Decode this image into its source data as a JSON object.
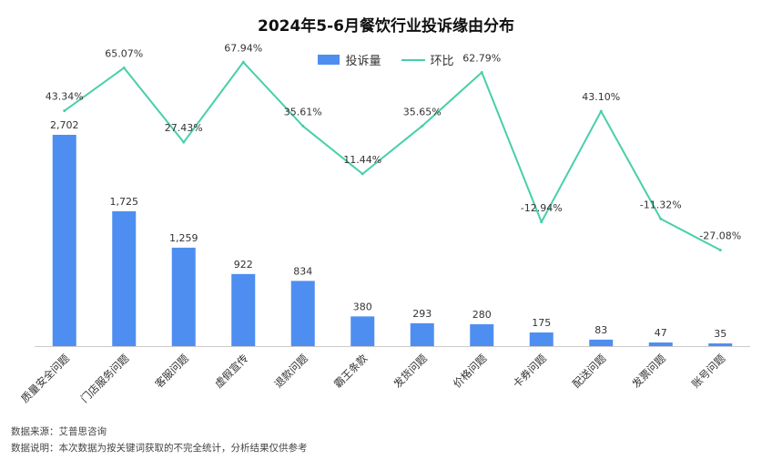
{
  "title": "2024年5-6月餐饮行业投诉缘由分布",
  "legend": {
    "bar_label": "投诉量",
    "line_label": "环比"
  },
  "colors": {
    "bar": "#4E8EF0",
    "line": "#47CFAA",
    "axis": "#CCCCCC"
  },
  "footnotes": {
    "source": "数据来源：艾普思咨询",
    "note": "数据说明：本次数据为按关键词获取的不完全统计，分析结果仅供参考"
  },
  "chart_data": {
    "type": "bar",
    "categories": [
      "质量安全问题",
      "门店服务问题",
      "客服问题",
      "虚假宣传",
      "退款问题",
      "霸王条款",
      "发货问题",
      "价格问题",
      "卡券问题",
      "配送问题",
      "发票问题",
      "账号问题"
    ],
    "series": [
      {
        "name": "投诉量",
        "type": "bar",
        "values": [
          2702,
          1725,
          1259,
          922,
          834,
          380,
          293,
          280,
          175,
          83,
          47,
          35
        ],
        "labels": [
          "2,702",
          "1,725",
          "1,259",
          "922",
          "834",
          "380",
          "293",
          "280",
          "175",
          "83",
          "47",
          "35"
        ]
      },
      {
        "name": "环比",
        "type": "line",
        "values": [
          43.34,
          65.07,
          27.43,
          67.94,
          35.61,
          11.44,
          35.65,
          62.79,
          -12.94,
          43.1,
          -11.32,
          -27.08
        ],
        "labels": [
          "43.34%",
          "65.07%",
          "27.43%",
          "67.94%",
          "35.61%",
          "11.44%",
          "35.65%",
          "62.79%",
          "-12.94%",
          "43.10%",
          "-11.32%",
          "-27.08%"
        ]
      }
    ],
    "legend_position": "top-center",
    "grid": false
  }
}
